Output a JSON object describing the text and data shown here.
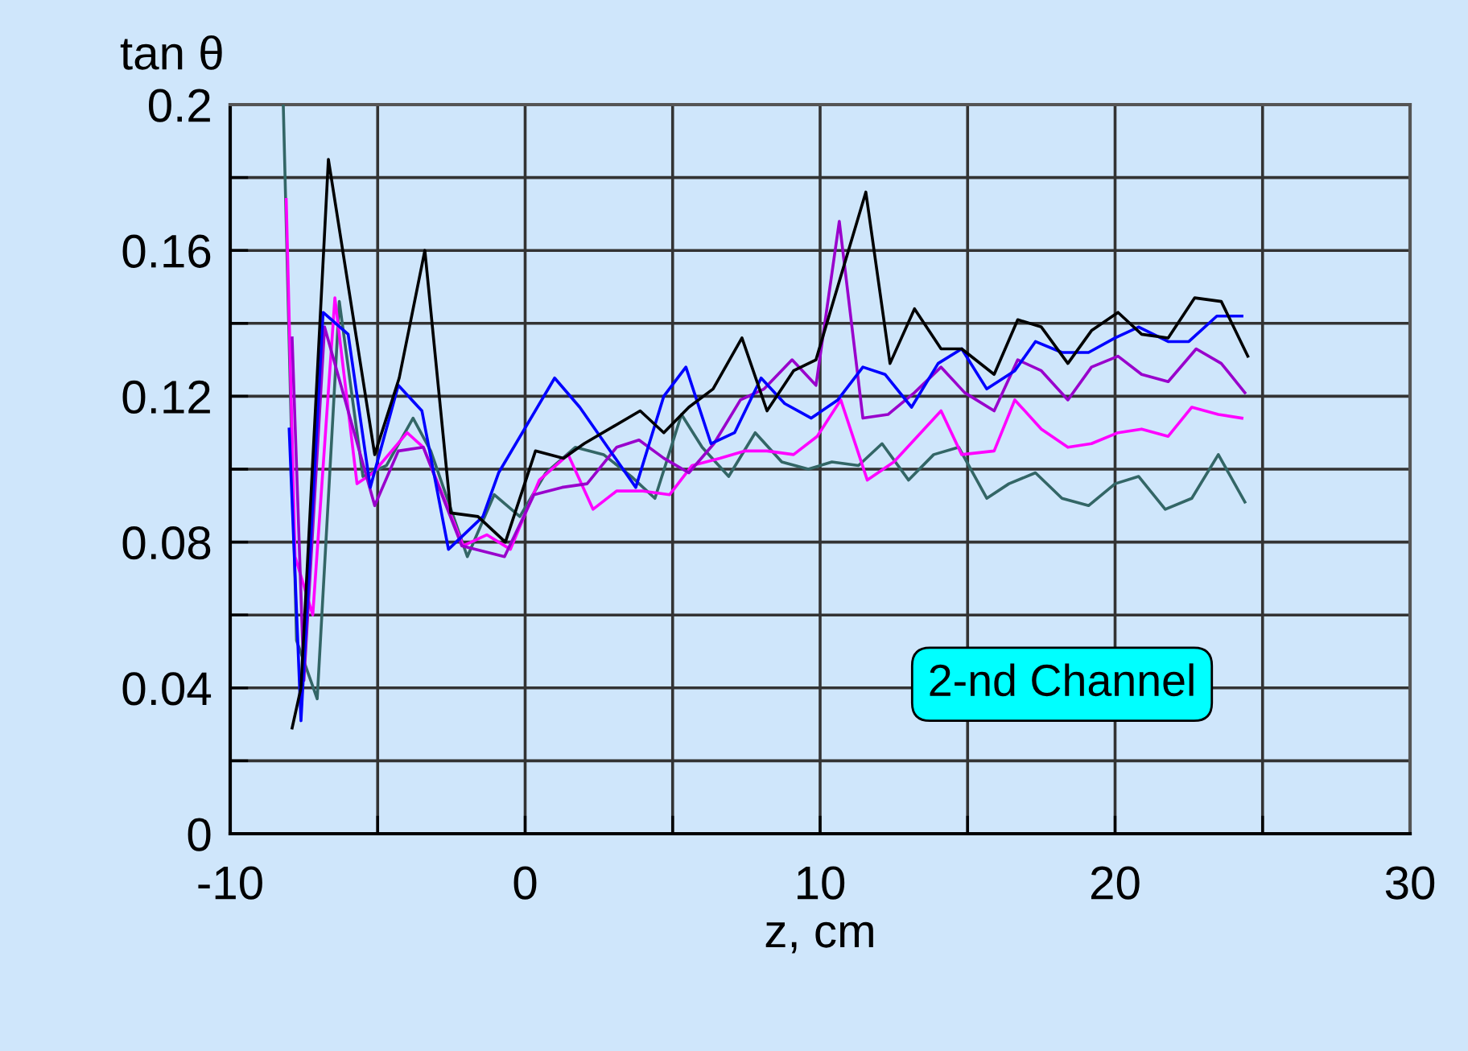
{
  "chart_data": {
    "type": "line",
    "xlabel": "z, cm",
    "ylabel": "tan θ",
    "xlim": [
      -10,
      30
    ],
    "xticks": [
      -10,
      {
        "value": -5,
        "label": null
      },
      0,
      {
        "value": 5,
        "label": null
      },
      10,
      {
        "value": 15,
        "label": null
      },
      20,
      {
        "value": 25,
        "label": null
      },
      30
    ],
    "ylim": [
      0,
      0.2
    ],
    "yticks": [
      0,
      {
        "value": 0.02,
        "label": null
      },
      0.04,
      {
        "value": 0.06,
        "label": null
      },
      0.08,
      {
        "value": 0.1,
        "label": null
      },
      0.12,
      {
        "value": 0.14,
        "label": null
      },
      0.16,
      {
        "value": 0.18,
        "label": null
      },
      0.2
    ],
    "grid": true,
    "marker": "none",
    "line_style": "solid",
    "annotations": [
      "2-nd Channel"
    ],
    "series": [
      {
        "color": "#336666",
        "x": [
          -8.2,
          -7.75,
          -7.05,
          -6.3,
          -5.5,
          -4.7,
          -3.8,
          -3.2,
          -1.96,
          -1.05,
          -0.18,
          0.7,
          1.7,
          2.66,
          3.6,
          4.4,
          5.3,
          6.0,
          6.9,
          7.8,
          8.7,
          9.6,
          10.4,
          11.3,
          12.1,
          13.0,
          13.85,
          14.7,
          15.65,
          16.4,
          17.3,
          18.2,
          19.1,
          20.0,
          20.8,
          21.7,
          22.6,
          23.5,
          24.4
        ],
        "values": [
          0.2,
          0.053,
          0.037,
          0.146,
          0.098,
          0.101,
          0.114,
          0.105,
          0.076,
          0.093,
          0.087,
          0.099,
          0.106,
          0.104,
          0.098,
          0.092,
          0.115,
          0.106,
          0.098,
          0.11,
          0.102,
          0.1,
          0.102,
          0.101,
          0.107,
          0.097,
          0.104,
          0.106,
          0.092,
          0.096,
          0.099,
          0.092,
          0.09,
          0.096,
          0.098,
          0.089,
          0.092,
          0.104,
          0.091
        ]
      },
      {
        "color": "#ff00ff",
        "x": [
          -8.1,
          -7.8,
          -7.2,
          -6.45,
          -5.7,
          -5.15,
          -4.0,
          -3.45,
          -2.1,
          -1.3,
          -0.5,
          0.48,
          1.46,
          2.3,
          3.1,
          4.0,
          4.9,
          5.66,
          6.6,
          7.46,
          8.2,
          9.1,
          9.9,
          10.7,
          11.6,
          12.5,
          13.3,
          14.1,
          14.8,
          15.9,
          16.6,
          17.5,
          18.4,
          19.2,
          20.1,
          20.9,
          21.8,
          22.6,
          23.5,
          24.3
        ],
        "values": [
          0.174,
          0.076,
          0.06,
          0.147,
          0.096,
          0.099,
          0.11,
          0.106,
          0.079,
          0.082,
          0.078,
          0.097,
          0.104,
          0.089,
          0.094,
          0.094,
          0.093,
          0.101,
          0.103,
          0.105,
          0.105,
          0.104,
          0.109,
          0.119,
          0.097,
          0.102,
          0.109,
          0.116,
          0.104,
          0.105,
          0.119,
          0.111,
          0.106,
          0.107,
          0.11,
          0.111,
          0.109,
          0.117,
          0.115,
          0.114
        ]
      },
      {
        "color": "#9900cc",
        "x": [
          -7.9,
          -7.5,
          -6.8,
          -5.1,
          -4.3,
          -3.45,
          -2.15,
          -0.7,
          0.3,
          1.25,
          2.1,
          3.1,
          3.86,
          4.7,
          5.55,
          6.4,
          7.3,
          8.1,
          9.05,
          9.86,
          10.65,
          11.45,
          12.3,
          13.2,
          14.1,
          14.9,
          15.9,
          16.7,
          17.5,
          18.4,
          19.2,
          20.1,
          20.9,
          21.8,
          22.75,
          23.6,
          24.4
        ],
        "values": [
          0.136,
          0.042,
          0.139,
          0.09,
          0.105,
          0.106,
          0.079,
          0.076,
          0.093,
          0.095,
          0.096,
          0.106,
          0.108,
          0.103,
          0.099,
          0.107,
          0.119,
          0.122,
          0.13,
          0.123,
          0.168,
          0.114,
          0.115,
          0.121,
          0.128,
          0.121,
          0.116,
          0.13,
          0.127,
          0.119,
          0.128,
          0.131,
          0.126,
          0.124,
          0.133,
          0.129,
          0.121
        ]
      },
      {
        "color": "#0000ff",
        "x": [
          -8.0,
          -7.6,
          -6.85,
          -6.0,
          -5.25,
          -4.3,
          -3.5,
          -2.6,
          -1.43,
          -0.9,
          1.0,
          1.85,
          3.75,
          4.7,
          5.45,
          6.3,
          7.1,
          8.0,
          8.8,
          9.7,
          10.6,
          11.45,
          12.2,
          13.1,
          14.0,
          14.8,
          15.65,
          16.6,
          17.3,
          18.2,
          19.1,
          20.0,
          20.8,
          21.8,
          22.5,
          23.45,
          24.3
        ],
        "values": [
          0.111,
          0.031,
          0.143,
          0.137,
          0.095,
          0.123,
          0.116,
          0.078,
          0.087,
          0.099,
          0.125,
          0.117,
          0.095,
          0.12,
          0.128,
          0.107,
          0.11,
          0.125,
          0.118,
          0.114,
          0.119,
          0.128,
          0.126,
          0.117,
          0.129,
          0.133,
          0.122,
          0.127,
          0.135,
          0.132,
          0.132,
          0.136,
          0.139,
          0.135,
          0.135,
          0.142,
          0.142
        ]
      },
      {
        "color": "#000000",
        "x": [
          -7.9,
          -7.6,
          -6.67,
          -5.1,
          -4.27,
          -3.4,
          -2.52,
          -1.6,
          -0.67,
          0.35,
          1.3,
          2.0,
          3.9,
          4.7,
          5.55,
          6.37,
          7.35,
          8.2,
          9.1,
          9.86,
          11.55,
          12.37,
          13.2,
          14.1,
          14.8,
          15.9,
          16.7,
          17.5,
          18.4,
          19.2,
          20.1,
          20.9,
          21.8,
          22.7,
          23.6,
          24.5
        ],
        "values": [
          0.029,
          0.04,
          0.185,
          0.104,
          0.125,
          0.16,
          0.088,
          0.087,
          0.08,
          0.105,
          0.103,
          0.107,
          0.116,
          0.11,
          0.117,
          0.122,
          0.136,
          0.116,
          0.127,
          0.13,
          0.176,
          0.129,
          0.144,
          0.133,
          0.133,
          0.126,
          0.141,
          0.139,
          0.129,
          0.138,
          0.143,
          0.137,
          0.136,
          0.147,
          0.146,
          0.131
        ]
      }
    ]
  }
}
